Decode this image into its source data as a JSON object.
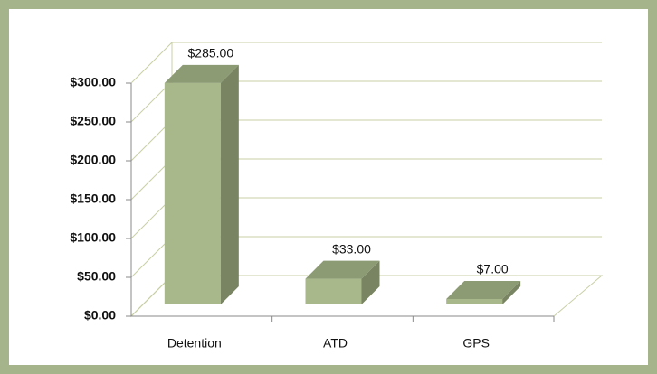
{
  "chart_data": {
    "type": "bar3d",
    "categories": [
      "Detention",
      "ATD",
      "GPS"
    ],
    "values": [
      285,
      33,
      7
    ],
    "value_labels": [
      "$285.00",
      "$33.00",
      "$7.00"
    ],
    "color": "#a8b88a",
    "ylim": [
      0,
      300
    ],
    "yticks": [
      {
        "value": 0,
        "label": "$0.00"
      },
      {
        "value": 50,
        "label": "$50.00"
      },
      {
        "value": 100,
        "label": "$100.00"
      },
      {
        "value": 150,
        "label": "$150.00"
      },
      {
        "value": 200,
        "label": "$200.00"
      },
      {
        "value": 250,
        "label": "$250.00"
      },
      {
        "value": 300,
        "label": "$300.00"
      }
    ],
    "grid": true
  }
}
